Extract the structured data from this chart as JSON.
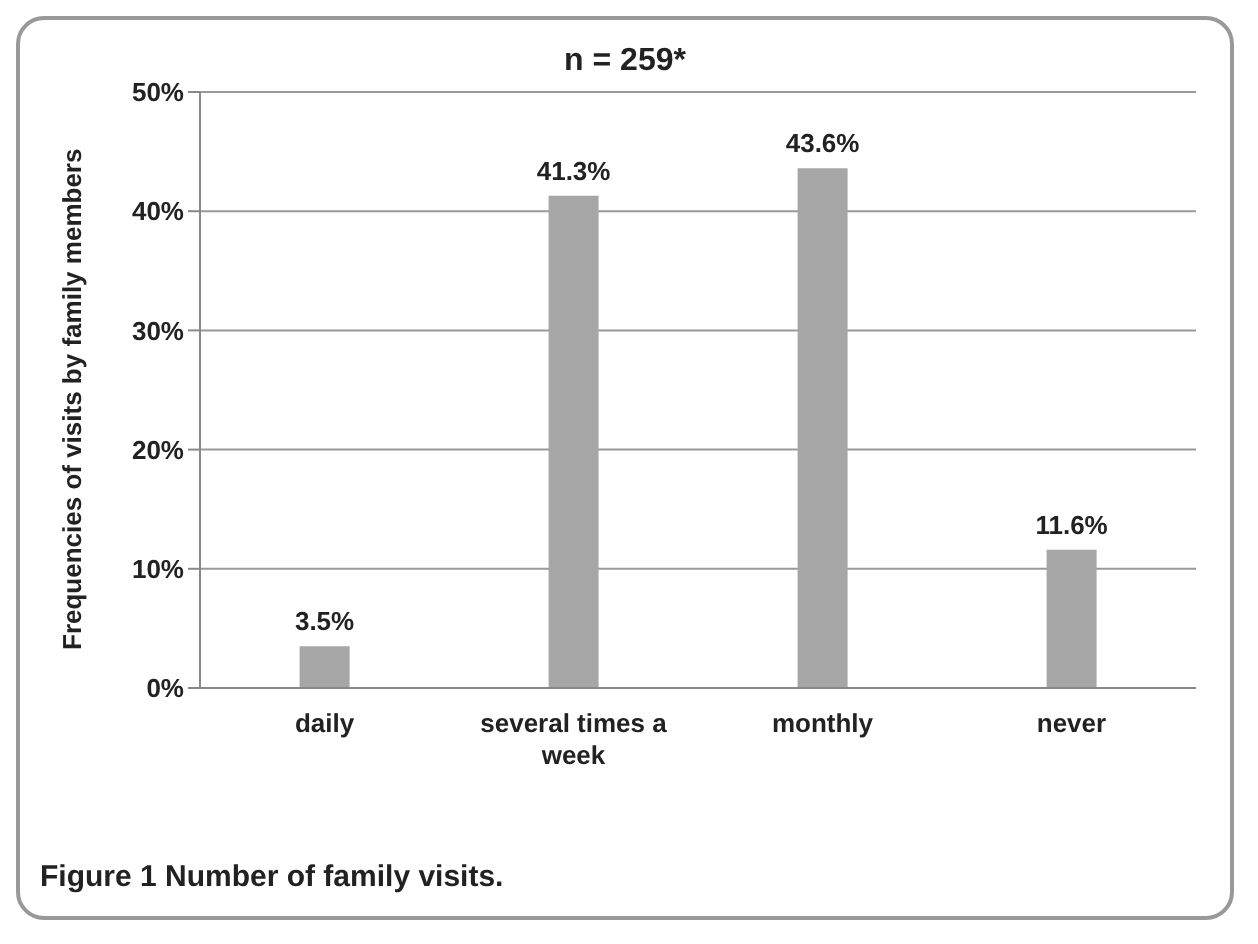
{
  "chart_data": {
    "type": "bar",
    "title": "n = 259*",
    "ylabel": "Frequencies of visits by family members",
    "categories": [
      "daily",
      "several times a week",
      "monthly",
      "never"
    ],
    "values": [
      3.5,
      41.3,
      43.6,
      11.6
    ],
    "color": "#a6a6a6",
    "value_labels": [
      "3.5%",
      "41.3%",
      "43.6%",
      "11.6%"
    ],
    "ylim": [
      0,
      50
    ],
    "yticks": [
      {
        "value": 0,
        "label": "0%"
      },
      {
        "value": 10,
        "label": "10%"
      },
      {
        "value": 20,
        "label": "20%"
      },
      {
        "value": 30,
        "label": "30%"
      },
      {
        "value": 40,
        "label": "40%"
      },
      {
        "value": 50,
        "label": "50%"
      }
    ],
    "grid": "y",
    "legend": false,
    "annotations": [
      "Figure 1 Number of family visits."
    ]
  }
}
